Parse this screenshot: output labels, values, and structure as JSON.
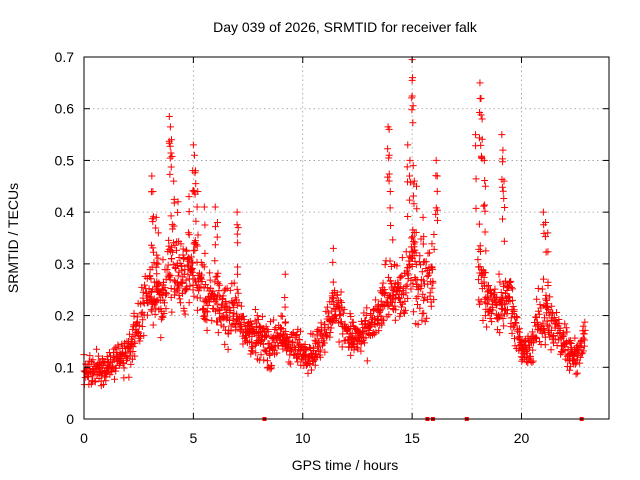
{
  "chart_data": {
    "type": "scatter",
    "title": "Day 039 of 2026, SRMTID for receiver falk",
    "xlabel": "GPS time / hours",
    "ylabel": "SRMTID / TECUs",
    "xlim": [
      0,
      24
    ],
    "ylim": [
      0,
      0.7
    ],
    "xticks": [
      0,
      5,
      10,
      15,
      20
    ],
    "yticks": [
      0,
      0.1,
      0.2,
      0.3,
      0.4,
      0.5,
      0.6,
      0.7
    ],
    "xtick_labels": [
      "0",
      "5",
      "10",
      "15",
      "20"
    ],
    "ytick_labels": [
      "0",
      "0.1",
      "0.2",
      "0.3",
      "0.4",
      "0.5",
      "0.6",
      "0.7"
    ],
    "grid": true,
    "marker": "+",
    "series_color": "#ff0000",
    "series": [
      {
        "name": "SRMTID",
        "envelope": [
          [
            0.0,
            0.09,
            0.03
          ],
          [
            0.5,
            0.09,
            0.03
          ],
          [
            1.0,
            0.1,
            0.03
          ],
          [
            1.5,
            0.11,
            0.03
          ],
          [
            2.0,
            0.13,
            0.04
          ],
          [
            2.5,
            0.18,
            0.05
          ],
          [
            3.0,
            0.25,
            0.07
          ],
          [
            3.5,
            0.22,
            0.05
          ],
          [
            4.0,
            0.3,
            0.08
          ],
          [
            4.5,
            0.27,
            0.06
          ],
          [
            5.0,
            0.3,
            0.07
          ],
          [
            5.5,
            0.22,
            0.06
          ],
          [
            6.0,
            0.24,
            0.06
          ],
          [
            6.5,
            0.2,
            0.05
          ],
          [
            7.0,
            0.21,
            0.05
          ],
          [
            7.5,
            0.17,
            0.04
          ],
          [
            8.0,
            0.16,
            0.04
          ],
          [
            8.5,
            0.14,
            0.04
          ],
          [
            9.0,
            0.16,
            0.04
          ],
          [
            9.5,
            0.14,
            0.04
          ],
          [
            10.0,
            0.13,
            0.03
          ],
          [
            10.5,
            0.13,
            0.04
          ],
          [
            11.0,
            0.17,
            0.04
          ],
          [
            11.5,
            0.22,
            0.05
          ],
          [
            12.0,
            0.17,
            0.04
          ],
          [
            12.5,
            0.15,
            0.04
          ],
          [
            13.0,
            0.17,
            0.04
          ],
          [
            13.5,
            0.2,
            0.04
          ],
          [
            14.0,
            0.27,
            0.07
          ],
          [
            14.5,
            0.23,
            0.06
          ],
          [
            15.0,
            0.3,
            0.09
          ],
          [
            15.5,
            0.25,
            0.07
          ],
          [
            16.0,
            0.3,
            0.08
          ],
          [
            18.0,
            0.3,
            0.09
          ],
          [
            18.5,
            0.22,
            0.05
          ],
          [
            19.0,
            0.22,
            0.05
          ],
          [
            19.5,
            0.24,
            0.05
          ],
          [
            20.0,
            0.13,
            0.03
          ],
          [
            20.5,
            0.14,
            0.03
          ],
          [
            21.0,
            0.22,
            0.08
          ],
          [
            21.5,
            0.17,
            0.04
          ],
          [
            22.0,
            0.15,
            0.04
          ],
          [
            22.5,
            0.12,
            0.03
          ],
          [
            22.9,
            0.16,
            0.03
          ]
        ],
        "peaks": [
          [
            3.1,
            0.47
          ],
          [
            3.15,
            0.44
          ],
          [
            3.3,
            0.39
          ],
          [
            3.4,
            0.36
          ],
          [
            3.9,
            0.585
          ],
          [
            3.95,
            0.565
          ],
          [
            4.0,
            0.54
          ],
          [
            4.1,
            0.46
          ],
          [
            4.3,
            0.42
          ],
          [
            4.8,
            0.43
          ],
          [
            5.0,
            0.53
          ],
          [
            5.05,
            0.51
          ],
          [
            5.1,
            0.48
          ],
          [
            5.2,
            0.44
          ],
          [
            5.5,
            0.41
          ],
          [
            6.0,
            0.41
          ],
          [
            6.1,
            0.38
          ],
          [
            7.0,
            0.4
          ],
          [
            7.05,
            0.37
          ],
          [
            9.2,
            0.28
          ],
          [
            11.4,
            0.33
          ],
          [
            13.9,
            0.565
          ],
          [
            13.95,
            0.56
          ],
          [
            14.0,
            0.44
          ],
          [
            14.8,
            0.53
          ],
          [
            14.9,
            0.5
          ],
          [
            15.0,
            0.695
          ],
          [
            15.02,
            0.66
          ],
          [
            15.05,
            0.49
          ],
          [
            15.1,
            0.46
          ],
          [
            15.2,
            0.45
          ],
          [
            15.5,
            0.39
          ],
          [
            16.1,
            0.5
          ],
          [
            16.15,
            0.47
          ],
          [
            17.9,
            0.55
          ],
          [
            18.1,
            0.65
          ],
          [
            18.15,
            0.62
          ],
          [
            18.2,
            0.58
          ],
          [
            18.3,
            0.5
          ],
          [
            18.35,
            0.45
          ],
          [
            19.1,
            0.55
          ],
          [
            19.15,
            0.52
          ],
          [
            19.2,
            0.46
          ],
          [
            21.0,
            0.4
          ],
          [
            21.1,
            0.38
          ],
          [
            21.2,
            0.36
          ]
        ],
        "zero_values_x": [
          8.25,
          15.7,
          15.95,
          17.5,
          22.75
        ]
      }
    ]
  }
}
